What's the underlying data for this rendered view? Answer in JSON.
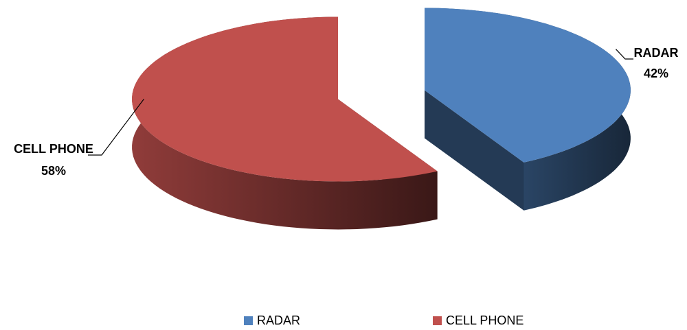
{
  "chart_data": {
    "type": "pie3d",
    "categories": [
      "RADAR",
      "CELL PHONE"
    ],
    "values": [
      42,
      58
    ],
    "value_labels": [
      "42%",
      "58%"
    ],
    "colors": [
      "#4f81bd",
      "#c0504d"
    ],
    "legend": "bottom"
  }
}
